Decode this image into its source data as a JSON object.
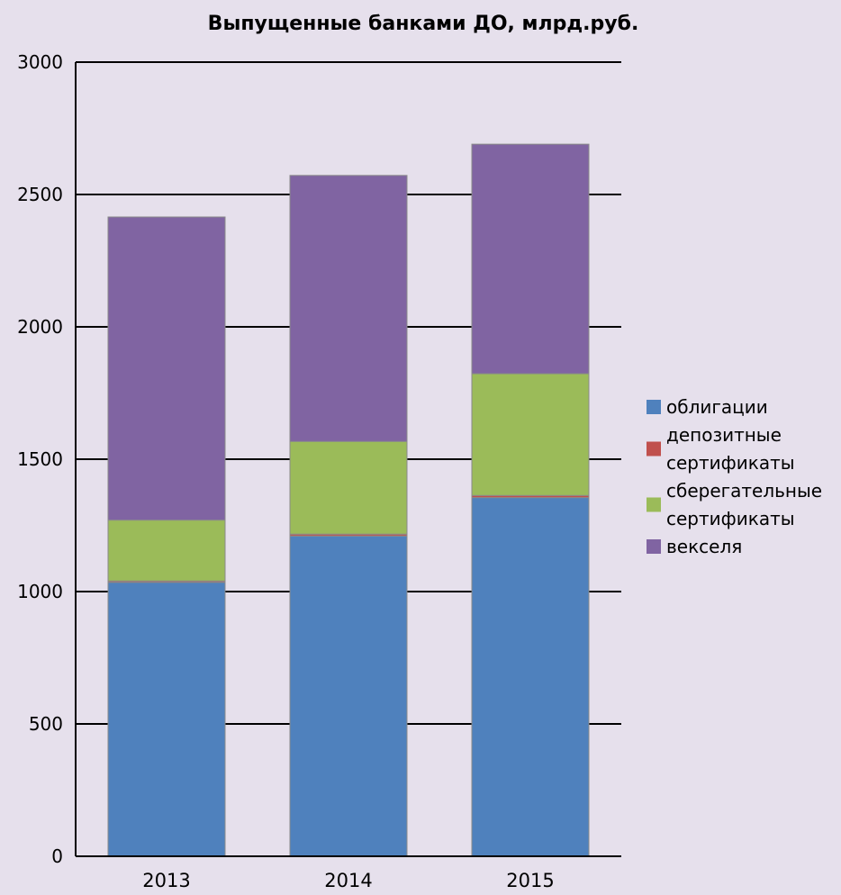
{
  "chart_data": {
    "type": "bar",
    "stacked": true,
    "title": "Выпущенные банками ДО, млрд.руб.",
    "xlabel": "",
    "ylabel": "",
    "categories": [
      "2013",
      "2014",
      "2015"
    ],
    "ylim": [
      0,
      3000
    ],
    "yticks": [
      0,
      500,
      1000,
      1500,
      2000,
      2500,
      3000
    ],
    "grid": true,
    "legend_position": "right",
    "series": [
      {
        "name": "облигации",
        "name_lines": [
          "облигации"
        ],
        "color": "#4f81bd",
        "values": [
          1035,
          1210,
          1355
        ]
      },
      {
        "name": "депозитные сертификаты",
        "name_lines": [
          "депозитные",
          "сертификаты"
        ],
        "color": "#c0504d",
        "values": [
          5,
          7,
          8
        ]
      },
      {
        "name": "сберегательные сертификаты",
        "name_lines": [
          "сберегательные",
          "сертификаты"
        ],
        "color": "#9bbb59",
        "values": [
          230,
          350,
          460
        ]
      },
      {
        "name": "векселя",
        "name_lines": [
          "векселя"
        ],
        "color": "#8064a2",
        "values": [
          1145,
          1005,
          867
        ]
      }
    ]
  }
}
